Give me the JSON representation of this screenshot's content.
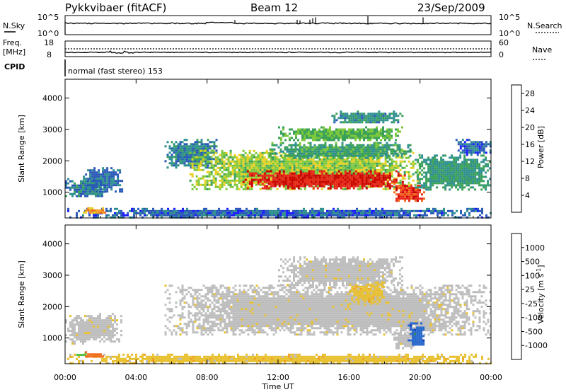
{
  "header": {
    "title": "Pykkvibaer (fitACF)",
    "beam": "Beam 12",
    "date": "23/Sep/2009"
  },
  "top_panels": {
    "nsky": {
      "label": "N.Sky",
      "ticks": [
        "10^5",
        "10^0"
      ]
    },
    "nsearch": {
      "label": "N.Search",
      "ticks": [
        "10^5",
        "10^0"
      ]
    },
    "freq": {
      "label_line1": "Freq.",
      "label_line2": "[MHz]",
      "ticks": [
        "18",
        "8"
      ]
    },
    "nave": {
      "label": "Nave",
      "ticks": [
        "60",
        "0"
      ]
    },
    "cpid": {
      "label": "CPID",
      "text": "normal (fast stereo) 153"
    }
  },
  "colors": {
    "power_scale": [
      "#1a1aff",
      "#2a58b8",
      "#2f8f8f",
      "#3aa05a",
      "#7cc83c",
      "#e8d020",
      "#f4a020",
      "#f26a1c",
      "#e8281c",
      "#cc0000"
    ],
    "velocity_scale": [
      "#1a3fb8",
      "#2a6acc",
      "#2f8a4a",
      "#58c040",
      "#bdbdbd",
      "#bdbdbd",
      "#e8c030",
      "#f0a020",
      "#f06a18",
      "#dd1010"
    ]
  },
  "chart_data": [
    {
      "type": "heatmap",
      "name": "power",
      "xlabel": "Time UT",
      "ylabel": "Slant Range [km]",
      "x_ticks": [
        "00:00",
        "04:00",
        "08:00",
        "12:00",
        "16:00",
        "20:00",
        "00:00"
      ],
      "x_range_hours": [
        0,
        24
      ],
      "y_ticks": [
        1000,
        2000,
        3000,
        4000
      ],
      "y_range_km": [
        180,
        4600
      ],
      "colorbar": {
        "label": "Power [dB]",
        "ticks": [
          "4",
          "8",
          "12",
          "16",
          "20",
          "24",
          "28"
        ],
        "range": [
          0,
          30
        ]
      },
      "bands": [
        {
          "t0": 0.0,
          "t1": 24.0,
          "r0": 200,
          "r1": 500,
          "value": 5
        },
        {
          "t0": 0.0,
          "t1": 2.3,
          "r0": 850,
          "r1": 1450,
          "value": 7
        },
        {
          "t0": 1.0,
          "t1": 3.2,
          "r0": 1050,
          "r1": 1800,
          "value": 6
        },
        {
          "t0": 1.0,
          "t1": 2.3,
          "r0": 350,
          "r1": 520,
          "value": 20
        },
        {
          "t0": 5.6,
          "t1": 8.5,
          "r0": 1800,
          "r1": 2700,
          "value": 7
        },
        {
          "t0": 7.0,
          "t1": 20.0,
          "r0": 1100,
          "r1": 2350,
          "value": 14
        },
        {
          "t0": 10.0,
          "t1": 19.2,
          "r0": 1150,
          "r1": 1700,
          "value": 27
        },
        {
          "t0": 11.5,
          "t1": 19.5,
          "r0": 2100,
          "r1": 2600,
          "value": 10
        },
        {
          "t0": 12.0,
          "t1": 19.0,
          "r0": 2650,
          "r1": 3100,
          "value": 12
        },
        {
          "t0": 15.0,
          "t1": 19.0,
          "r0": 3200,
          "r1": 3600,
          "value": 8
        },
        {
          "t0": 18.5,
          "t1": 20.2,
          "r0": 700,
          "r1": 1300,
          "value": 25
        },
        {
          "t0": 19.7,
          "t1": 24.0,
          "r0": 1100,
          "r1": 2200,
          "value": 9
        },
        {
          "t0": 22.0,
          "t1": 24.0,
          "r0": 2200,
          "r1": 2700,
          "value": 5
        }
      ]
    },
    {
      "type": "heatmap",
      "name": "velocity",
      "xlabel": "Time UT",
      "ylabel": "Slant Range [km]",
      "x_ticks": [
        "00:00",
        "04:00",
        "08:00",
        "12:00",
        "16:00",
        "20:00",
        "00:00"
      ],
      "x_range_hours": [
        0,
        24
      ],
      "y_ticks": [
        1000,
        2000,
        3000,
        4000
      ],
      "y_range_km": [
        180,
        4600
      ],
      "colorbar": {
        "label": "Velocity [m s^-1]",
        "ticks": [
          "1000",
          "500",
          "100",
          "25",
          "-25",
          "-100",
          "-500",
          "-1000"
        ]
      },
      "bands": [
        {
          "t0": 0.0,
          "t1": 24.0,
          "r0": 200,
          "r1": 500,
          "value": "-100"
        },
        {
          "t0": 0.0,
          "t1": 3.2,
          "r0": 850,
          "r1": 1800,
          "value": "0"
        },
        {
          "t0": 0.5,
          "t1": 1.2,
          "r0": 450,
          "r1": 560,
          "value": "100"
        },
        {
          "t0": 1.0,
          "t1": 2.3,
          "r0": 400,
          "r1": 580,
          "value": "-500"
        },
        {
          "t0": 5.6,
          "t1": 24.0,
          "r0": 1100,
          "r1": 2700,
          "value": "0"
        },
        {
          "t0": 12.0,
          "t1": 19.0,
          "r0": 2650,
          "r1": 3600,
          "value": "0"
        },
        {
          "t0": 16.0,
          "t1": 18.0,
          "r0": 2100,
          "r1": 2800,
          "value": "-100"
        },
        {
          "t0": 18.5,
          "t1": 19.7,
          "r0": 700,
          "r1": 1250,
          "value": "0"
        },
        {
          "t0": 19.3,
          "t1": 20.2,
          "r0": 800,
          "r1": 1500,
          "value": "500"
        }
      ]
    }
  ]
}
